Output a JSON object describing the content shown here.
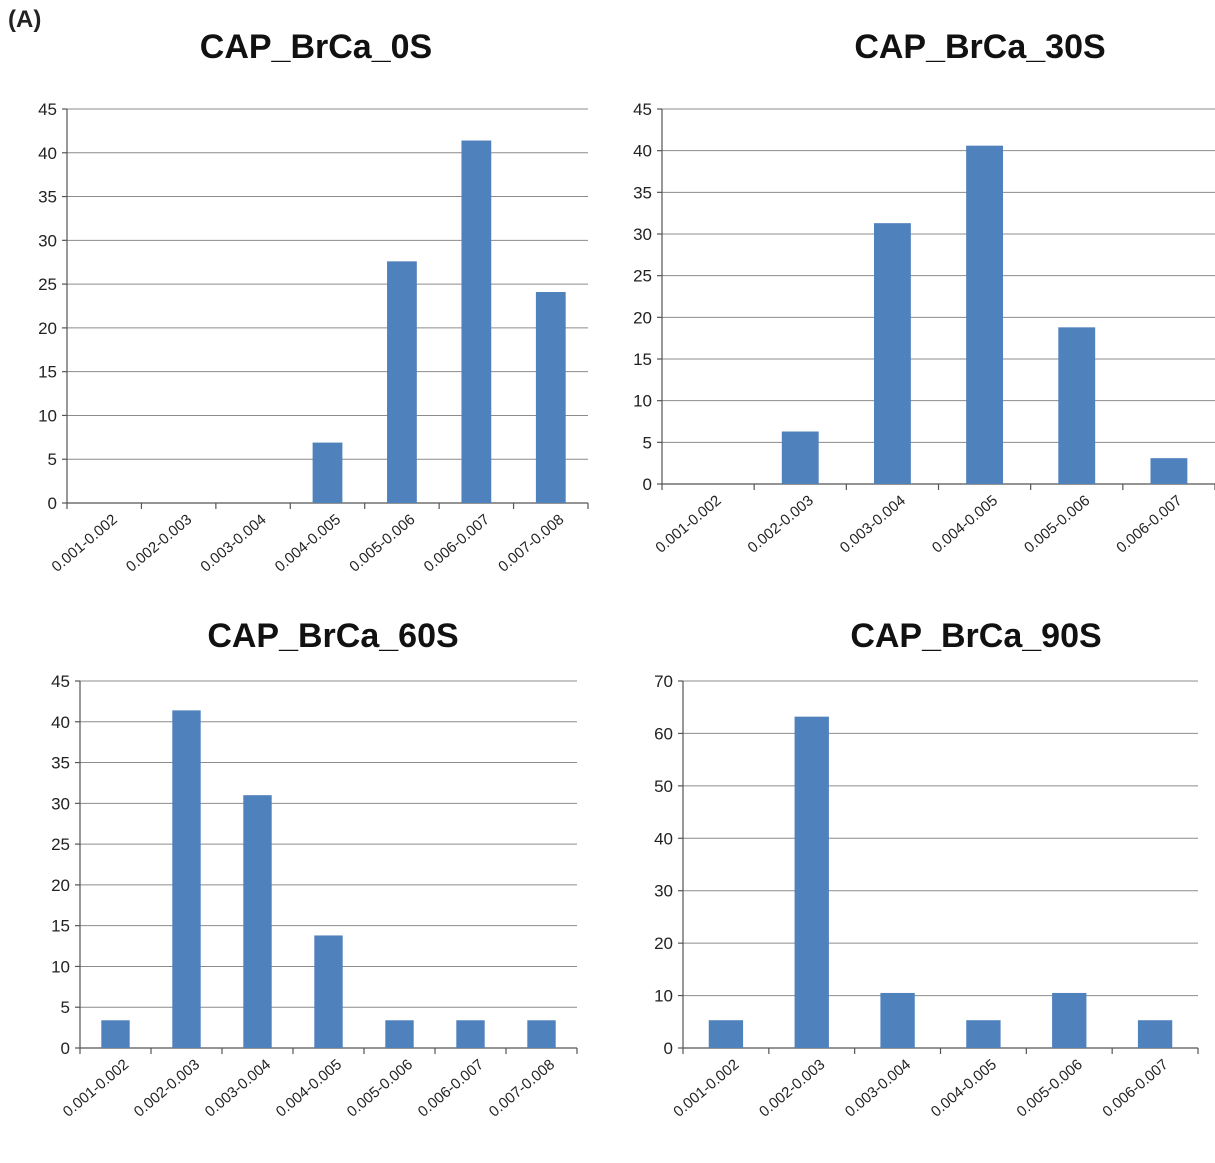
{
  "panel_label": "(A)",
  "bar_color": "#4f81bd",
  "chart_data": [
    {
      "type": "bar",
      "title": "CAP_BrCa_0S",
      "categories": [
        "0.001-0.002",
        "0.002-0.003",
        "0.003-0.004",
        "0.004-0.005",
        "0.005-0.006",
        "0.006-0.007",
        "0.007-0.008"
      ],
      "values": [
        0,
        0,
        0,
        6.9,
        27.6,
        41.4,
        24.1
      ],
      "ylim": [
        0,
        45
      ],
      "yticks": [
        0,
        5,
        10,
        15,
        20,
        25,
        30,
        35,
        40,
        45
      ],
      "grid": true,
      "legend": "none"
    },
    {
      "type": "bar",
      "title": "CAP_BrCa_30S",
      "categories": [
        "0.001-0.002",
        "0.002-0.003",
        "0.003-0.004",
        "0.004-0.005",
        "0.005-0.006",
        "0.006-0.007"
      ],
      "values": [
        0,
        6.3,
        31.3,
        40.6,
        18.8,
        3.1
      ],
      "ylim": [
        0,
        45
      ],
      "yticks": [
        0,
        5,
        10,
        15,
        20,
        25,
        30,
        35,
        40,
        45
      ],
      "grid": true,
      "legend": "none"
    },
    {
      "type": "bar",
      "title": "CAP_BrCa_60S",
      "categories": [
        "0.001-0.002",
        "0.002-0.003",
        "0.003-0.004",
        "0.004-0.005",
        "0.005-0.006",
        "0.006-0.007",
        "0.007-0.008"
      ],
      "values": [
        3.4,
        41.4,
        31.0,
        13.8,
        3.4,
        3.4,
        3.4
      ],
      "ylim": [
        0,
        45
      ],
      "yticks": [
        0,
        5,
        10,
        15,
        20,
        25,
        30,
        35,
        40,
        45
      ],
      "grid": true,
      "legend": "none"
    },
    {
      "type": "bar",
      "title": "CAP_BrCa_90S",
      "categories": [
        "0.001-0.002",
        "0.002-0.003",
        "0.003-0.004",
        "0.004-0.005",
        "0.005-0.006",
        "0.006-0.007"
      ],
      "values": [
        5.3,
        63.2,
        10.5,
        5.3,
        10.5,
        5.3
      ],
      "ylim": [
        0,
        70
      ],
      "yticks": [
        0,
        10,
        20,
        30,
        40,
        50,
        60,
        70
      ],
      "grid": true,
      "legend": "none"
    }
  ]
}
